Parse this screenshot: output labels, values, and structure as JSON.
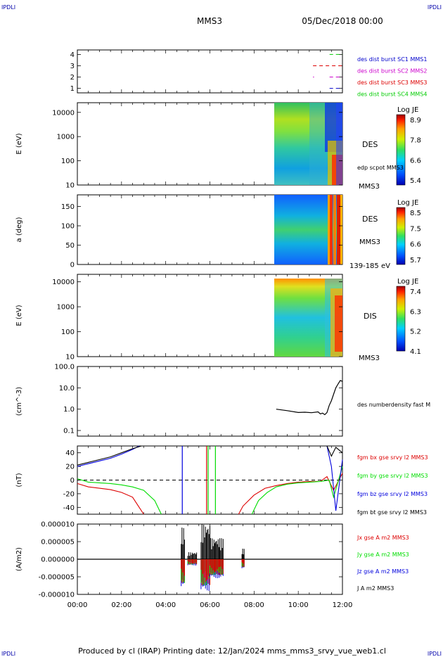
{
  "header": {
    "corner_left": "IPDLI",
    "corner_right": "IPDLI",
    "spacecraft": "MMS3",
    "datetime": "05/Dec/2018 00:00",
    "footer": "Produced by cl (IRAP)   Printing date: 12/Jan/2024   mms_mms3_srvy_vue_web1.cl",
    "footer_corner_left": "IPDLI",
    "footer_corner_right": "IPDLI"
  },
  "colors": {
    "sc1": "#0000cc",
    "sc2": "#cc00cc",
    "sc3": "#dd0000",
    "sc4": "#00cc00",
    "bx": "#dd0000",
    "by": "#00dd00",
    "bz": "#0000dd",
    "bt": "#000000"
  },
  "chart_data": [
    {
      "type": "line",
      "panel": "burst availability",
      "x_range": [
        "00:00",
        "12:00"
      ],
      "yticks": [
        "1",
        "2",
        "3",
        "4"
      ],
      "ylim": [
        0.6,
        4.4
      ],
      "legend": [
        "des dist burst SC1 MMS1",
        "des dist burst SC2 MMS2",
        "des dist burst SC3 MMS3",
        "des dist burst SC4 MMS4"
      ],
      "intervals": [
        {
          "sc": 1,
          "from": "11:25",
          "to": "12:00"
        },
        {
          "sc": 2,
          "from": "11:25",
          "to": "12:00"
        },
        {
          "sc": 2,
          "from": "10:40",
          "to": "10:40"
        },
        {
          "sc": 3,
          "from": "10:40",
          "to": "12:00"
        },
        {
          "sc": 4,
          "from": "11:25",
          "to": "12:00"
        }
      ]
    },
    {
      "type": "heatmap",
      "panel": "DES energy spectrogram",
      "ylabel": "E (eV)",
      "yticks": [
        "10",
        "100",
        "1000",
        "10000"
      ],
      "ylog": true,
      "data_start": "09:00",
      "colorbar_title": "Log JE",
      "colorbar_ticks": [
        "8.9",
        "7.8",
        "6.6",
        "5.4"
      ],
      "labels": [
        "DES",
        "edp scpot MMS3",
        "MMS3"
      ]
    },
    {
      "type": "heatmap",
      "panel": "DES pitch angle",
      "ylabel": "a (deg)",
      "yticks": [
        "0",
        "50",
        "100",
        "150"
      ],
      "ylim": [
        0,
        180
      ],
      "data_start": "09:00",
      "colorbar_title": "Log JE",
      "colorbar_ticks": [
        "8.5",
        "7.5",
        "6.6",
        "5.7"
      ],
      "labels": [
        "DES",
        "MMS3",
        "139-185 eV"
      ]
    },
    {
      "type": "heatmap",
      "panel": "DIS energy spectrogram",
      "ylabel": "E (eV)",
      "yticks": [
        "10",
        "100",
        "1000",
        "10000"
      ],
      "ylog": true,
      "data_start": "09:00",
      "colorbar_title": "Log JE",
      "colorbar_ticks": [
        "7.4",
        "6.3",
        "5.2",
        "4.1"
      ],
      "labels": [
        "DIS",
        "MMS3"
      ]
    },
    {
      "type": "line",
      "panel": "density",
      "ylabel": "(cm^-3)",
      "yticks": [
        "0.1",
        "1.0",
        "10.0",
        "100.0"
      ],
      "ylog": true,
      "ylim": [
        0.1,
        100
      ],
      "series": [
        {
          "name": "des numberdensity fast M",
          "x": [
            9.0,
            9.5,
            10.0,
            10.3,
            10.6,
            10.9,
            11.0,
            11.1,
            11.2,
            11.3,
            11.4,
            11.5,
            11.6,
            11.7,
            11.8,
            11.9,
            12.0
          ],
          "values": [
            1.0,
            0.85,
            0.7,
            0.72,
            0.68,
            0.75,
            0.6,
            0.65,
            0.55,
            0.7,
            1.5,
            2.5,
            5.0,
            10.0,
            15.0,
            22.0,
            20.0
          ]
        }
      ]
    },
    {
      "type": "line",
      "panel": "magnetic field",
      "ylabel": "(nT)",
      "yticks": [
        "-40",
        "-20",
        "0",
        "20",
        "40"
      ],
      "ylim": [
        -50,
        50
      ],
      "legend": [
        "fgm bx gse srvy l2 MMS3",
        "fgm by gse srvy l2 MMS3",
        "fgm bz gse srvy l2 MMS3",
        "fgm bt gse srvy l2 MMS3"
      ],
      "series": [
        {
          "name": "fgm bx gse srvy l2 MMS3",
          "x": [
            0.0,
            0.5,
            1.0,
            1.5,
            2.0,
            2.5,
            2.8,
            3.0,
            7.3,
            7.5,
            8.0,
            8.5,
            9.0,
            9.5,
            10.0,
            10.5,
            11.0,
            11.3,
            11.6,
            12.0
          ],
          "values": [
            -5,
            -10,
            -12,
            -14,
            -18,
            -25,
            -40,
            -50,
            -50,
            -38,
            -22,
            -12,
            -8,
            -5,
            -3,
            -2,
            -2,
            5,
            -15,
            10
          ]
        },
        {
          "name": "fgm by gse srvy l2 MMS3",
          "x": [
            0.0,
            0.2,
            0.5,
            1.0,
            1.5,
            2.0,
            2.5,
            3.0,
            3.5,
            3.8,
            7.9,
            8.2,
            8.6,
            9.0,
            9.5,
            10.0,
            10.5,
            11.0,
            11.4,
            11.6,
            12.0
          ],
          "values": [
            2,
            0,
            -3,
            -4,
            -5,
            -7,
            -10,
            -15,
            -30,
            -50,
            -50,
            -30,
            -18,
            -10,
            -6,
            -4,
            -3,
            -2,
            0,
            -25,
            20
          ]
        },
        {
          "name": "fgm bz gse srvy l2 MMS3",
          "x": [
            0.0,
            0.5,
            1.0,
            1.5,
            2.0,
            2.5,
            2.8,
            11.3,
            11.5,
            11.7,
            12.0
          ],
          "values": [
            20,
            24,
            28,
            32,
            38,
            45,
            50,
            50,
            20,
            -45,
            30
          ]
        },
        {
          "name": "fgm bt gse srvy l2 MMS3",
          "x": [
            0.0,
            0.5,
            1.0,
            1.5,
            2.0,
            2.5,
            2.9,
            11.3,
            11.5,
            11.7,
            12.0
          ],
          "values": [
            22,
            26,
            30,
            34,
            40,
            46,
            50,
            50,
            35,
            48,
            40
          ]
        }
      ],
      "spikes": [
        {
          "time": 4.75,
          "series": "fgm bz gse srvy l2 MMS3"
        },
        {
          "time": 5.85,
          "series": "fgm bx gse srvy l2 MMS3"
        },
        {
          "time": 5.92,
          "series": "fgm by gse srvy l2 MMS3"
        },
        {
          "time": 6.25,
          "series": "fgm by gse srvy l2 MMS3"
        }
      ]
    },
    {
      "type": "line",
      "panel": "current density",
      "ylabel": "(A/m2)",
      "yticks": [
        "-0.000010",
        "-0.000005",
        "0.000000",
        "0.000005",
        "0.000010"
      ],
      "ylim": [
        -1e-05,
        1e-05
      ],
      "legend": [
        "Jx gse A m2 MMS3",
        "Jy gse A m2 MMS3",
        "Jz gse A m2 MMS3",
        "J A m2 MMS3"
      ],
      "xticks": [
        "00:00",
        "02:00",
        "04:00",
        "06:00",
        "08:00",
        "10:00",
        "12:00"
      ],
      "bursts": [
        {
          "from": 4.7,
          "to": 4.85,
          "amplitude": 9e-06
        },
        {
          "from": 5.0,
          "to": 5.4,
          "amplitude": 2e-06
        },
        {
          "from": 5.6,
          "to": 6.0,
          "amplitude": 1e-05
        },
        {
          "from": 6.0,
          "to": 6.6,
          "amplitude": 6e-06
        },
        {
          "from": 7.45,
          "to": 7.55,
          "amplitude": 3e-06
        }
      ]
    }
  ]
}
